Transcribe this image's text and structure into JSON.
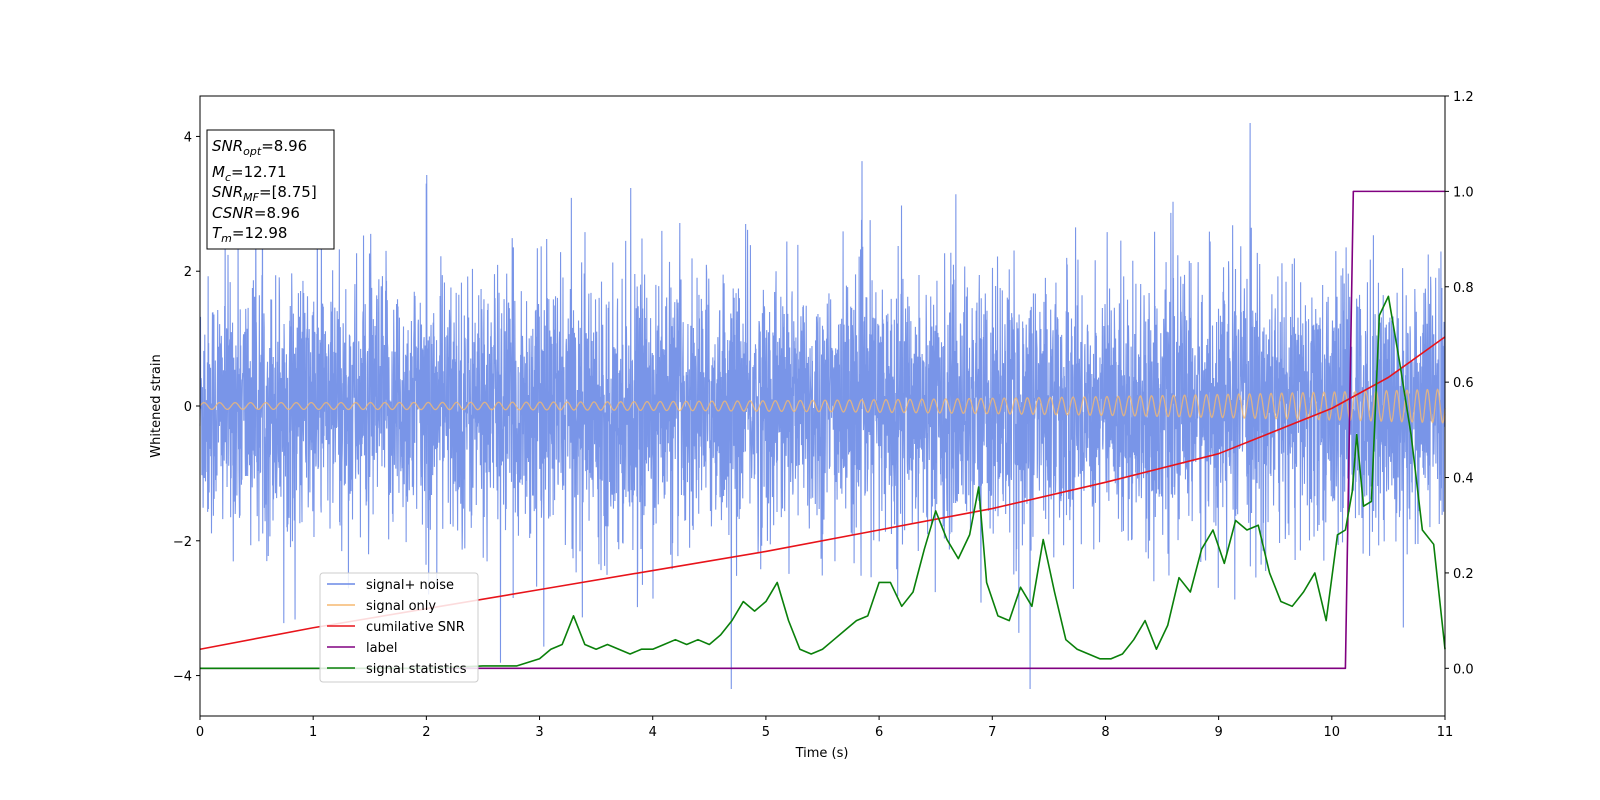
{
  "chart_data": {
    "type": "line",
    "xlabel": "Time (s)",
    "ylabel": "Whitened strain",
    "xlim": [
      0,
      11
    ],
    "ylim_left": [
      -4.6,
      4.6
    ],
    "ylim_right": [
      -0.1,
      1.2
    ],
    "x_ticks": [
      0,
      1,
      2,
      3,
      4,
      5,
      6,
      7,
      8,
      9,
      10,
      11
    ],
    "y_ticks_left": [
      -4,
      -2,
      0,
      2,
      4
    ],
    "y_ticks_right": [
      0.0,
      0.2,
      0.4,
      0.6,
      0.8,
      1.0,
      1.2
    ],
    "right_tick_labels": [
      "0.0",
      "0.2",
      "0.4",
      "0.6",
      "0.8",
      "1.0",
      "1.2"
    ],
    "legend_position": "lower-left",
    "info_box": {
      "snr_opt": {
        "name": "SNR",
        "sub": "opt",
        "value": "=8.96"
      },
      "mc": {
        "name": "M",
        "sub": "c",
        "value": "=12.71"
      },
      "snr_mf": {
        "name": "SNR",
        "sub": "MF",
        "value": "=[8.75]"
      },
      "csnr": {
        "name": "CSNR",
        "value": "=8.96"
      },
      "tm": {
        "name": "T",
        "sub": "m",
        "value": "=12.98"
      }
    },
    "series": [
      {
        "name": "signal+ noise",
        "axis": "left",
        "color": "#6a89e6",
        "note": "dense noisy strain, roughly within [-2.5, 2.5] with spikes to about +/-4",
        "envelope": {
          "typical_abs": 1.3,
          "peak_max": 4.2,
          "peak_min": -4.2
        }
      },
      {
        "name": "signal only",
        "axis": "left",
        "color": "#f5b971",
        "note": "chirp oscillation around 0, amplitude growing from ~0.05 to ~0.25",
        "amplitude_start": 0.05,
        "amplitude_end": 0.25
      },
      {
        "name": "cumilative SNR",
        "axis": "right",
        "color": "#e8131a",
        "x": [
          0,
          1,
          2,
          3,
          4,
          5,
          6,
          7,
          8,
          9,
          10,
          10.5,
          11
        ],
        "y": [
          0.04,
          0.085,
          0.125,
          0.165,
          0.205,
          0.245,
          0.29,
          0.335,
          0.39,
          0.45,
          0.545,
          0.61,
          0.695
        ]
      },
      {
        "name": "label",
        "axis": "right",
        "color": "#800080",
        "x": [
          0,
          10.12,
          10.19,
          11
        ],
        "y": [
          0,
          0,
          1,
          1
        ]
      },
      {
        "name": "signal statistics",
        "axis": "right",
        "color": "#0a800a",
        "x": [
          0,
          1,
          2,
          2.5,
          2.8,
          3.0,
          3.1,
          3.2,
          3.3,
          3.4,
          3.5,
          3.6,
          3.7,
          3.8,
          3.9,
          4.0,
          4.1,
          4.2,
          4.3,
          4.4,
          4.5,
          4.6,
          4.7,
          4.8,
          4.9,
          5.0,
          5.1,
          5.2,
          5.3,
          5.4,
          5.5,
          5.6,
          5.7,
          5.8,
          5.9,
          6.0,
          6.1,
          6.2,
          6.3,
          6.4,
          6.5,
          6.6,
          6.7,
          6.8,
          6.88,
          6.95,
          7.05,
          7.15,
          7.25,
          7.35,
          7.45,
          7.55,
          7.65,
          7.75,
          7.85,
          7.95,
          8.05,
          8.15,
          8.25,
          8.35,
          8.45,
          8.55,
          8.65,
          8.75,
          8.85,
          8.95,
          9.05,
          9.15,
          9.25,
          9.35,
          9.45,
          9.55,
          9.65,
          9.75,
          9.85,
          9.95,
          10.05,
          10.12,
          10.18,
          10.22,
          10.28,
          10.35,
          10.42,
          10.5,
          10.6,
          10.7,
          10.8,
          10.9,
          11.0
        ],
        "y": [
          0.0,
          0.0,
          0.0,
          0.005,
          0.005,
          0.02,
          0.04,
          0.05,
          0.11,
          0.05,
          0.04,
          0.05,
          0.04,
          0.03,
          0.04,
          0.04,
          0.05,
          0.06,
          0.05,
          0.06,
          0.05,
          0.07,
          0.1,
          0.14,
          0.12,
          0.14,
          0.18,
          0.1,
          0.04,
          0.03,
          0.04,
          0.06,
          0.08,
          0.1,
          0.11,
          0.18,
          0.18,
          0.13,
          0.16,
          0.25,
          0.33,
          0.27,
          0.23,
          0.28,
          0.38,
          0.18,
          0.11,
          0.1,
          0.17,
          0.13,
          0.27,
          0.16,
          0.06,
          0.04,
          0.03,
          0.02,
          0.02,
          0.03,
          0.06,
          0.1,
          0.04,
          0.09,
          0.19,
          0.16,
          0.25,
          0.29,
          0.22,
          0.31,
          0.29,
          0.3,
          0.2,
          0.14,
          0.13,
          0.16,
          0.2,
          0.1,
          0.28,
          0.29,
          0.37,
          0.49,
          0.34,
          0.35,
          0.74,
          0.78,
          0.64,
          0.49,
          0.29,
          0.26,
          0.04
        ]
      }
    ]
  }
}
